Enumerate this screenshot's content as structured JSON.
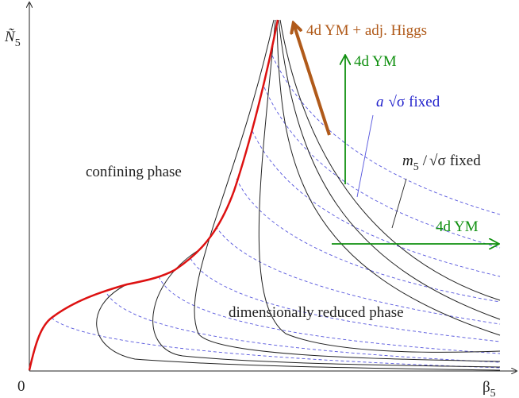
{
  "axes": {
    "y_label": {
      "base": "Ñ",
      "sub": "5"
    },
    "x_label": {
      "base": "β",
      "sub": "5"
    },
    "origin": "0"
  },
  "annotations": {
    "adj_higgs": "4d YM + adj. Higgs",
    "ym_vertical": "4d YM",
    "ym_horizontal": "4d YM",
    "a_fixed": {
      "a": "a",
      "root": "√σ",
      "rest": "fixed"
    },
    "m5_fixed": {
      "m": "m",
      "sub": "5",
      "slash": "/",
      "root": "√σ",
      "rest": "fixed"
    }
  },
  "regions": {
    "confining": "confining phase",
    "reduced": "dimensionally reduced phase"
  }
}
